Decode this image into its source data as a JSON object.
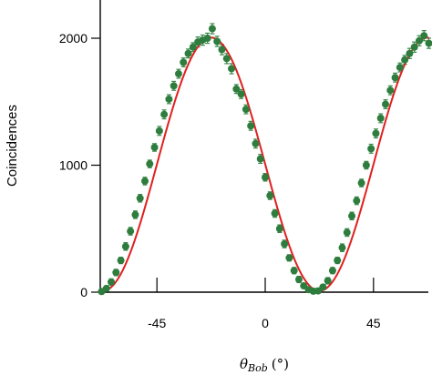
{
  "chart_data": {
    "type": "scatter",
    "xlabel": {
      "symbol": "θ",
      "subscript": "Bob",
      "unit": "(°)"
    },
    "ylabel": "Coincidences",
    "xlim": [
      -68,
      68
    ],
    "ylim": [
      0,
      2100
    ],
    "xticks": [
      {
        "value": -45,
        "label": "-45"
      },
      {
        "value": 0,
        "label": "0"
      },
      {
        "value": 45,
        "label": "45"
      }
    ],
    "yticks": [
      {
        "value": 0,
        "label": "0"
      },
      {
        "value": 1000,
        "label": "1000"
      },
      {
        "value": 2000,
        "label": "2000"
      }
    ],
    "grid": false,
    "colors": {
      "data": "#2e7d3e",
      "errorbar": "#3a8a4a",
      "fit": "#e02020",
      "axis": "#000000"
    },
    "fit": {
      "name": "",
      "model": "A*sin^2((x - x0)*pi/90) + C",
      "params": {
        "A": 1995,
        "x0": 22.5,
        "C": 10
      }
    },
    "series": [
      {
        "name": "",
        "x": [
          -68,
          -66,
          -64,
          -62,
          -60,
          -58,
          -56,
          -54,
          -52,
          -50,
          -48,
          -46,
          -44,
          -42,
          -40,
          -38,
          -36,
          -34,
          -32,
          -30,
          -28,
          -26,
          -24,
          -22,
          -20,
          -18,
          -16,
          -14,
          -12,
          -10,
          -8,
          -6,
          -4,
          -2,
          0,
          2,
          4,
          6,
          8,
          10,
          12,
          14,
          16,
          18,
          20,
          22,
          24,
          26,
          28,
          30,
          32,
          34,
          36,
          38,
          40,
          42,
          44,
          46,
          48,
          50,
          52,
          54,
          56,
          58,
          60,
          62,
          64,
          66,
          68
        ],
        "y": [
          5,
          30,
          80,
          155,
          250,
          360,
          480,
          610,
          740,
          875,
          1010,
          1140,
          1270,
          1400,
          1520,
          1625,
          1720,
          1810,
          1880,
          1930,
          1970,
          1985,
          2000,
          2075,
          1975,
          1910,
          1840,
          1760,
          1600,
          1560,
          1440,
          1310,
          1170,
          1050,
          905,
          760,
          620,
          500,
          380,
          270,
          170,
          100,
          50,
          20,
          8,
          10,
          40,
          90,
          170,
          250,
          350,
          470,
          600,
          720,
          860,
          1000,
          1130,
          1250,
          1370,
          1480,
          1590,
          1690,
          1770,
          1830,
          1880,
          1930,
          1980,
          2020,
          1960
        ],
        "yerr": [
          20,
          20,
          25,
          25,
          25,
          30,
          30,
          30,
          30,
          30,
          30,
          30,
          35,
          35,
          35,
          35,
          35,
          35,
          35,
          35,
          40,
          40,
          40,
          40,
          40,
          40,
          40,
          40,
          35,
          35,
          35,
          35,
          35,
          35,
          30,
          30,
          30,
          30,
          30,
          25,
          25,
          25,
          20,
          20,
          20,
          20,
          20,
          25,
          25,
          25,
          30,
          30,
          30,
          30,
          30,
          30,
          35,
          35,
          35,
          35,
          35,
          35,
          35,
          35,
          40,
          40,
          40,
          40,
          40
        ]
      }
    ]
  }
}
